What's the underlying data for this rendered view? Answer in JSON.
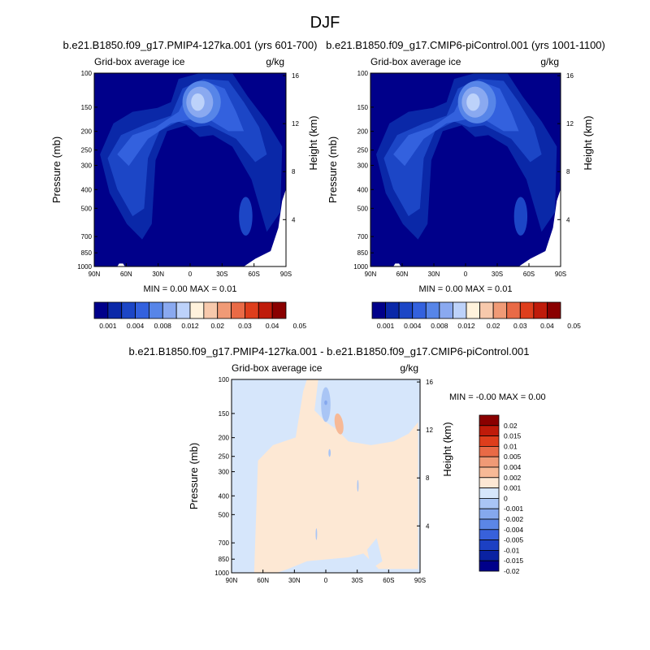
{
  "figure": {
    "title": "DJF"
  },
  "panels": [
    {
      "title": "b.e21.B1850.f09_g17.PMIP4-127ka.001 (yrs 601-700)",
      "left_label": "Grid-box average ice",
      "right_label": "g/kg",
      "ylabel": "Pressure (mb)",
      "y2label": "Height (km)",
      "stats": "MIN =   0.00   MAX =   0.01"
    },
    {
      "title": "b.e21.B1850.f09_g17.CMIP6-piControl.001 (yrs 1001-1100)",
      "left_label": "Grid-box average ice",
      "right_label": "g/kg",
      "ylabel": "Pressure (mb)",
      "y2label": "Height (km)",
      "stats": "MIN =   0.00   MAX =   0.01"
    },
    {
      "title": "b.e21.B1850.f09_g17.PMIP4-127ka.001 - b.e21.B1850.f09_g17.CMIP6-piControl.001",
      "left_label": "Grid-box average ice",
      "right_label": "g/kg",
      "ylabel": "Pressure (mb)",
      "y2label": "Height (km)",
      "stats": "MIN =  -0.00   MAX =   0.00"
    }
  ],
  "chart_data": [
    {
      "type": "heatmap",
      "title": "b.e21.B1850.f09_g17.PMIP4-127ka.001 (yrs 601-700)",
      "xlabel": "",
      "ylabel": "Pressure (mb)",
      "y2label": "Height (km)",
      "x_ticks": [
        "90N",
        "60N",
        "30N",
        "0",
        "30S",
        "60S",
        "90S"
      ],
      "y_ticks": [
        100,
        150,
        200,
        250,
        300,
        400,
        500,
        700,
        850,
        1000
      ],
      "y2_ticks": [
        16,
        12,
        8,
        4
      ],
      "ylim": [
        1000,
        100
      ],
      "min": 0.0,
      "max": 0.01,
      "colorbar_labels": [
        "0.001",
        "0.004",
        "0.008",
        "0.012",
        "0.02",
        "0.03",
        "0.04",
        "0.05"
      ],
      "colorbar_colors": [
        "#00008a",
        "#0a28a8",
        "#1c46c6",
        "#3361de",
        "#5785e8",
        "#8aa9f0",
        "#bdd2fa",
        "#fff2dc",
        "#f7c9ac",
        "#f09a76",
        "#e96a46",
        "#de3e1c",
        "#bf1b0a",
        "#8a0000"
      ]
    },
    {
      "type": "heatmap",
      "title": "b.e21.B1850.f09_g17.CMIP6-piControl.001 (yrs 1001-1100)",
      "xlabel": "",
      "ylabel": "Pressure (mb)",
      "y2label": "Height (km)",
      "x_ticks": [
        "90N",
        "60N",
        "30N",
        "0",
        "30S",
        "60S",
        "90S"
      ],
      "y_ticks": [
        100,
        150,
        200,
        250,
        300,
        400,
        500,
        700,
        850,
        1000
      ],
      "y2_ticks": [
        16,
        12,
        8,
        4
      ],
      "ylim": [
        1000,
        100
      ],
      "min": 0.0,
      "max": 0.01,
      "colorbar_labels": [
        "0.001",
        "0.004",
        "0.008",
        "0.012",
        "0.02",
        "0.03",
        "0.04",
        "0.05"
      ],
      "colorbar_colors": [
        "#00008a",
        "#0a28a8",
        "#1c46c6",
        "#3361de",
        "#5785e8",
        "#8aa9f0",
        "#bdd2fa",
        "#fff2dc",
        "#f7c9ac",
        "#f09a76",
        "#e96a46",
        "#de3e1c",
        "#bf1b0a",
        "#8a0000"
      ]
    },
    {
      "type": "heatmap",
      "title": "b.e21.B1850.f09_g17.PMIP4-127ka.001 - b.e21.B1850.f09_g17.CMIP6-piControl.001",
      "xlabel": "",
      "ylabel": "Pressure (mb)",
      "y2label": "Height (km)",
      "x_ticks": [
        "90N",
        "60N",
        "30N",
        "0",
        "30S",
        "60S",
        "90S"
      ],
      "y_ticks": [
        100,
        150,
        200,
        250,
        300,
        400,
        500,
        700,
        850,
        1000
      ],
      "y2_ticks": [
        16,
        12,
        8,
        4
      ],
      "ylim": [
        1000,
        100
      ],
      "min": -0.0,
      "max": 0.0,
      "colorbar_labels": [
        "0.02",
        "0.015",
        "0.01",
        "0.005",
        "0.004",
        "0.002",
        "0.001",
        "0",
        "-0.001",
        "-0.002",
        "-0.004",
        "-0.005",
        "-0.01",
        "-0.015",
        "-0.02"
      ],
      "colorbar_colors": [
        "#8a0000",
        "#bf1b0a",
        "#de3e1c",
        "#e96a46",
        "#f09a76",
        "#f7b996",
        "#fde8d4",
        "#d6e6fb",
        "#a9c5f5",
        "#85a8ee",
        "#5b86e6",
        "#3861db",
        "#1c40c3",
        "#0a22a2",
        "#00008a"
      ]
    }
  ]
}
